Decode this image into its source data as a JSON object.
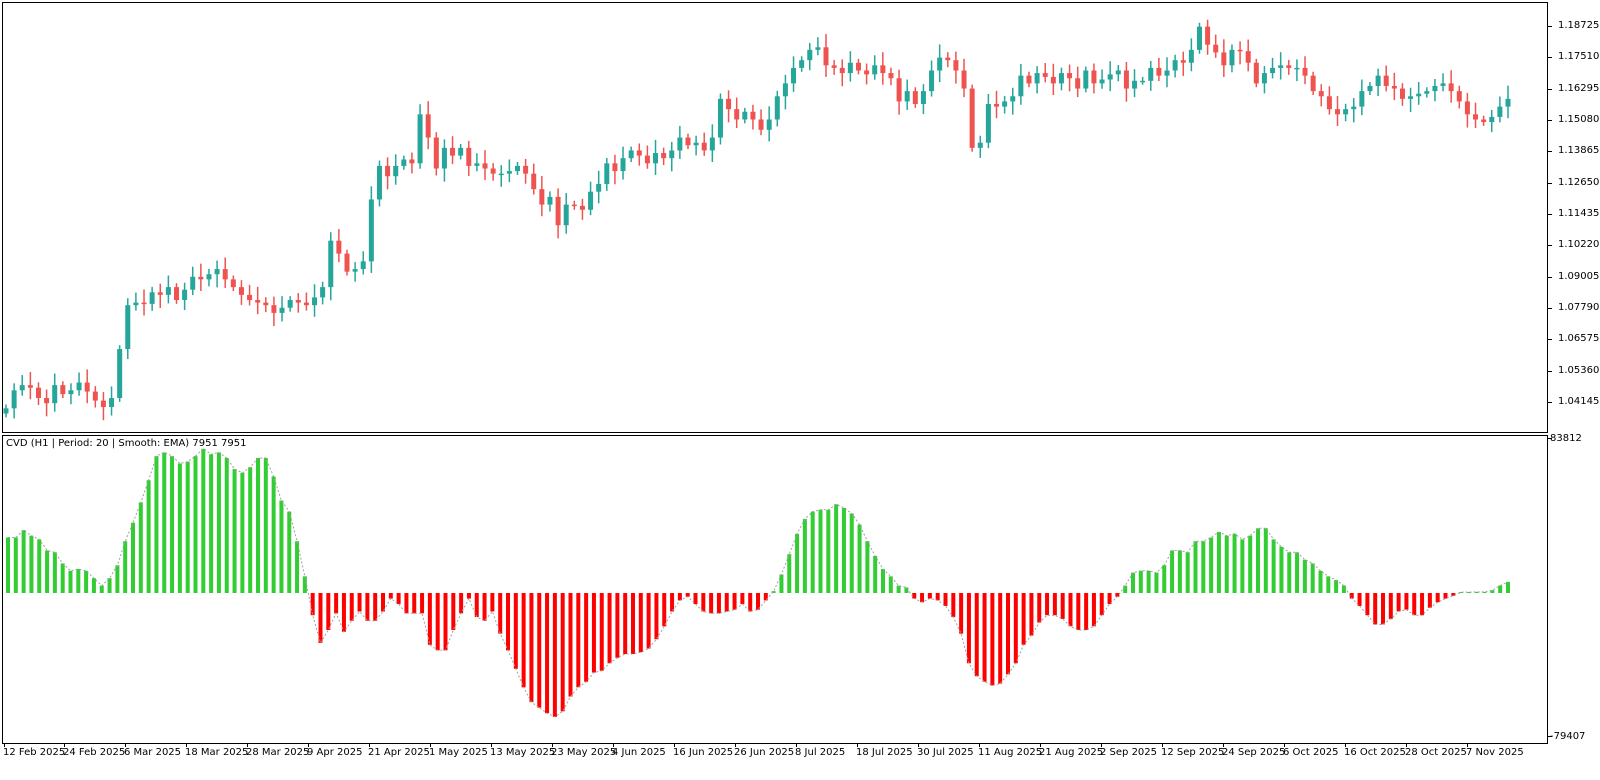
{
  "chart_data": [
    {
      "type": "candlestick",
      "title": "",
      "colors": {
        "up": "#26a69a",
        "down": "#ef5350"
      },
      "price_axis": {
        "ticks": [
          "1.18725",
          "1.17510",
          "1.16295",
          "1.15080",
          "1.13865",
          "1.12650",
          "1.11435",
          "1.10220",
          "1.09005",
          "1.07790",
          "1.06575",
          "1.05360",
          "1.04145"
        ],
        "ylim": [
          1.033,
          1.1966
        ]
      },
      "x_axis": {
        "ticks": [
          "12 Feb 2025",
          "24 Feb 2025",
          "6 Mar 2025",
          "18 Mar 2025",
          "28 Mar 2025",
          "9 Apr 2025",
          "21 Apr 2025",
          "1 May 2025",
          "13 May 2025",
          "23 May 2025",
          "4 Jun 2025",
          "16 Jun 2025",
          "26 Jun 2025",
          "8 Jul 2025",
          "18 Jul 2025",
          "30 Jul 2025",
          "11 Aug 2025",
          "21 Aug 2025",
          "2 Sep 2025",
          "12 Sep 2025",
          "24 Sep 2025",
          "6 Oct 2025",
          "16 Oct 2025",
          "28 Oct 2025",
          "7 Nov 2025"
        ]
      },
      "close": [
        1.039,
        1.046,
        1.048,
        1.047,
        1.043,
        1.041,
        1.048,
        1.0445,
        1.046,
        1.049,
        1.0455,
        1.042,
        1.0395,
        1.043,
        1.062,
        1.079,
        1.08,
        1.0795,
        1.084,
        1.083,
        1.086,
        1.081,
        1.085,
        1.09,
        1.089,
        1.091,
        1.093,
        1.089,
        1.086,
        1.083,
        1.081,
        1.08,
        1.079,
        1.076,
        1.078,
        1.081,
        1.08,
        1.079,
        1.082,
        1.086,
        1.104,
        1.099,
        1.092,
        1.093,
        1.096,
        1.12,
        1.133,
        1.129,
        1.133,
        1.1355,
        1.134,
        1.153,
        1.144,
        1.132,
        1.14,
        1.137,
        1.14,
        1.133,
        1.134,
        1.132,
        1.13,
        1.13,
        1.131,
        1.133,
        1.13,
        1.124,
        1.118,
        1.121,
        1.11,
        1.118,
        1.1175,
        1.116,
        1.123,
        1.126,
        1.134,
        1.131,
        1.136,
        1.139,
        1.137,
        1.134,
        1.138,
        1.136,
        1.139,
        1.144,
        1.141,
        1.142,
        1.139,
        1.144,
        1.159,
        1.155,
        1.151,
        1.154,
        1.151,
        1.147,
        1.151,
        1.16,
        1.165,
        1.171,
        1.174,
        1.178,
        1.179,
        1.172,
        1.171,
        1.169,
        1.173,
        1.17,
        1.1685,
        1.172,
        1.169,
        1.167,
        1.158,
        1.162,
        1.157,
        1.162,
        1.17,
        1.175,
        1.174,
        1.17,
        1.163,
        1.14,
        1.142,
        1.157,
        1.156,
        1.158,
        1.16,
        1.168,
        1.165,
        1.169,
        1.1675,
        1.165,
        1.169,
        1.167,
        1.163,
        1.17,
        1.165,
        1.1665,
        1.1685,
        1.17,
        1.163,
        1.166,
        1.166,
        1.171,
        1.168,
        1.17,
        1.174,
        1.173,
        1.178,
        1.187,
        1.18,
        1.177,
        1.172,
        1.178,
        1.1775,
        1.173,
        1.165,
        1.169,
        1.171,
        1.172,
        1.171,
        1.171,
        1.168,
        1.162,
        1.16,
        1.155,
        1.153,
        1.155,
        1.156,
        1.162,
        1.164,
        1.168,
        1.164,
        1.163,
        1.159,
        1.16,
        1.161,
        1.162,
        1.164,
        1.165,
        1.162,
        1.158,
        1.153,
        1.151,
        1.15,
        1.152,
        1.156,
        1.159
      ],
      "open": [
        1.037,
        1.039,
        1.046,
        1.048,
        1.047,
        1.043,
        1.041,
        1.048,
        1.0445,
        1.046,
        1.049,
        1.0455,
        1.042,
        1.0395,
        1.043,
        1.062,
        1.079,
        1.08,
        1.0795,
        1.084,
        1.083,
        1.086,
        1.081,
        1.085,
        1.09,
        1.089,
        1.091,
        1.093,
        1.089,
        1.086,
        1.083,
        1.081,
        1.08,
        1.079,
        1.076,
        1.078,
        1.081,
        1.08,
        1.079,
        1.082,
        1.086,
        1.104,
        1.099,
        1.092,
        1.093,
        1.096,
        1.12,
        1.133,
        1.129,
        1.133,
        1.1355,
        1.134,
        1.153,
        1.144,
        1.132,
        1.14,
        1.137,
        1.14,
        1.133,
        1.134,
        1.132,
        1.13,
        1.13,
        1.131,
        1.133,
        1.13,
        1.124,
        1.118,
        1.121,
        1.11,
        1.118,
        1.1175,
        1.116,
        1.123,
        1.126,
        1.134,
        1.131,
        1.136,
        1.139,
        1.137,
        1.134,
        1.138,
        1.136,
        1.139,
        1.144,
        1.141,
        1.142,
        1.139,
        1.144,
        1.159,
        1.155,
        1.151,
        1.154,
        1.151,
        1.147,
        1.151,
        1.16,
        1.165,
        1.171,
        1.174,
        1.178,
        1.179,
        1.172,
        1.171,
        1.169,
        1.173,
        1.17,
        1.1685,
        1.172,
        1.169,
        1.167,
        1.158,
        1.162,
        1.157,
        1.162,
        1.17,
        1.175,
        1.174,
        1.17,
        1.163,
        1.14,
        1.142,
        1.157,
        1.156,
        1.158,
        1.16,
        1.168,
        1.165,
        1.169,
        1.1675,
        1.165,
        1.169,
        1.167,
        1.163,
        1.17,
        1.165,
        1.1665,
        1.1685,
        1.17,
        1.163,
        1.166,
        1.166,
        1.171,
        1.168,
        1.17,
        1.174,
        1.173,
        1.178,
        1.187,
        1.18,
        1.177,
        1.172,
        1.178,
        1.1775,
        1.173,
        1.165,
        1.169,
        1.171,
        1.172,
        1.171,
        1.171,
        1.168,
        1.162,
        1.16,
        1.155,
        1.153,
        1.155,
        1.156,
        1.162,
        1.164,
        1.168,
        1.164,
        1.163,
        1.159,
        1.16,
        1.161,
        1.162,
        1.164,
        1.165,
        1.162,
        1.158,
        1.153,
        1.151,
        1.15,
        1.152,
        1.156
      ]
    },
    {
      "type": "bar",
      "title": "CVD (H1 | Period: 20 | Smooth: EMA) 7951 7951",
      "colors": {
        "positive": "#32cd32",
        "negative": "#ff0000",
        "smooth_line": "#a0a0a0"
      },
      "ylim": [
        -79407,
        83812
      ],
      "y_axis": {
        "top_label": "83812",
        "bottom_label": "-79407"
      },
      "values": [
        30000,
        30000,
        34000,
        31000,
        29000,
        23000,
        22000,
        16000,
        12000,
        13000,
        12000,
        8000,
        4000,
        8000,
        15000,
        28000,
        38000,
        49000,
        61000,
        74000,
        76000,
        74000,
        70000,
        71000,
        74000,
        78000,
        75000,
        76000,
        73000,
        67000,
        65000,
        68000,
        73000,
        73000,
        63000,
        50000,
        44000,
        28000,
        9000,
        -12000,
        -27000,
        -20000,
        -11000,
        -21000,
        -15000,
        -10000,
        -15000,
        -15000,
        -10000,
        -3000,
        -6000,
        -11000,
        -11000,
        -11000,
        -28000,
        -31000,
        -31000,
        -20000,
        -11000,
        -3000,
        -13000,
        -15000,
        -10000,
        -22000,
        -31000,
        -41000,
        -51000,
        -59000,
        -62000,
        -65000,
        -67000,
        -64000,
        -56000,
        -51000,
        -48000,
        -43000,
        -42000,
        -38000,
        -35000,
        -33000,
        -33000,
        -32000,
        -30000,
        -25000,
        -18000,
        -10000,
        -4000,
        -2000,
        -6000,
        -10000,
        -11000,
        -11000,
        -10000,
        -9000,
        -6000,
        -10000,
        -9000,
        -4000,
        1000,
        10000,
        21000,
        32000,
        40000,
        44000,
        45000,
        45000,
        48000,
        46000,
        43000,
        37000,
        28000,
        20000,
        13000,
        9000,
        4000,
        3000,
        -3000,
        -5000,
        -3000,
        -4000,
        -7000,
        -13000,
        -22000,
        -38000,
        -45000,
        -48000,
        -50000,
        -49000,
        -44000,
        -38000,
        -28000,
        -23000,
        -16000,
        -12000,
        -12000,
        -14000,
        -18000,
        -20000,
        -20000,
        -18000,
        -12000,
        -6000,
        -2000,
        4000,
        11000,
        12000,
        12000,
        11000,
        15000,
        23000,
        23000,
        22000,
        28000,
        28000,
        30000,
        33000,
        31000,
        32000,
        29000,
        31000,
        35000,
        35000,
        29000,
        25000,
        22000,
        22000,
        18000,
        16000,
        12000,
        9000,
        7000,
        4000,
        -3000,
        -7000,
        -12000,
        -17000,
        -17000,
        -14000,
        -10000,
        -9000,
        -12000,
        -12000,
        -8000,
        -5000,
        -3000,
        -1500,
        500,
        500,
        600,
        600,
        1500,
        4000,
        6000
      ]
    }
  ],
  "indicator": {
    "label": "CVD (H1 | Period: 20 | Smooth: EMA) 7951 7951"
  }
}
